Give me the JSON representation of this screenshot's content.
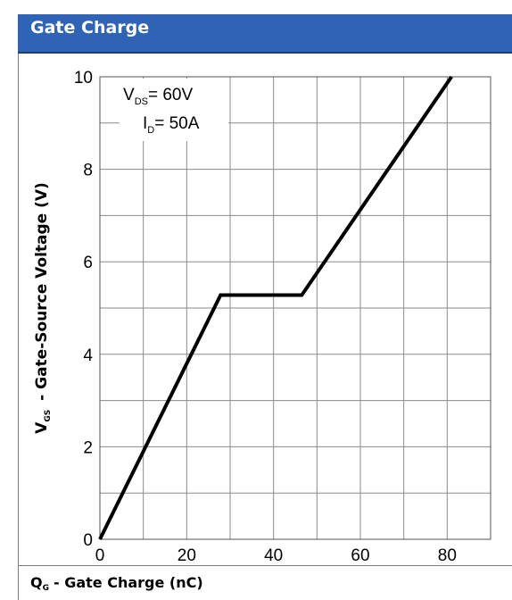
{
  "header": {
    "title": "Gate Charge"
  },
  "chart_data": {
    "type": "line",
    "title": "Gate Charge",
    "xlabel": {
      "main": "Q",
      "sub": "G",
      "rest": "- Gate Charge (nC)"
    },
    "ylabel": {
      "main": "V",
      "sub": "GS",
      "rest": "- Gate-Source Voltage (V)"
    },
    "xlim": [
      0,
      90
    ],
    "ylim": [
      0,
      10
    ],
    "x_ticks": [
      "0",
      "20",
      "40",
      "60",
      "80"
    ],
    "y_ticks": [
      "0",
      "2",
      "4",
      "6",
      "8",
      "10"
    ],
    "grid": true,
    "annotations": [
      {
        "main": "V",
        "sub": "DS",
        "rest": "= 60V"
      },
      {
        "main": "I",
        "sub": "D",
        "rest": "= 50A"
      }
    ],
    "series": [
      {
        "x": [
          0,
          27.8,
          46.5,
          81
        ],
        "y": [
          0,
          5.28,
          5.28,
          10
        ]
      }
    ],
    "line_color": "#000000"
  }
}
